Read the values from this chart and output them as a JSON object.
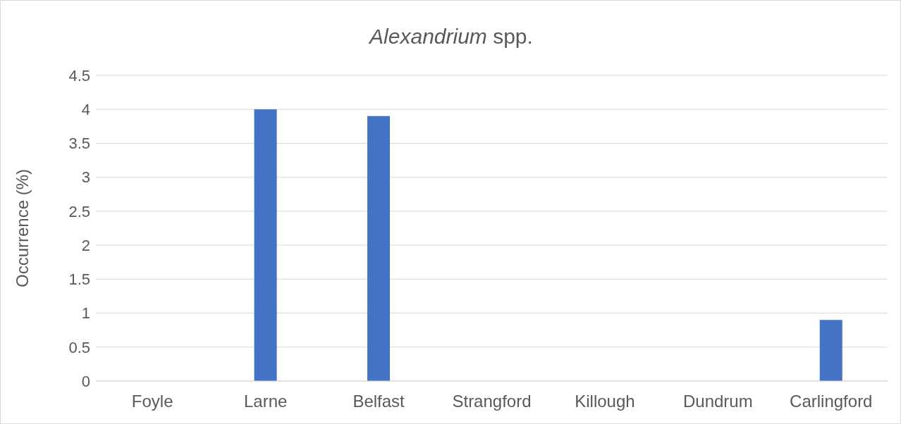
{
  "chart_data": {
    "type": "bar",
    "title": "Alexandrium spp.",
    "ylabel": "Occurrence (%)",
    "categories": [
      "Foyle",
      "Larne",
      "Belfast",
      "Strangford",
      "Killough",
      "Dundrum",
      "Carlingford"
    ],
    "values": [
      0,
      4,
      3.9,
      0,
      0,
      0,
      0.9
    ],
    "color": "#4472c4",
    "ylim": [
      0,
      4.5
    ],
    "yticks": [
      0,
      0.5,
      1,
      1.5,
      2,
      2.5,
      3,
      3.5,
      4,
      4.5
    ],
    "grid": "y"
  }
}
